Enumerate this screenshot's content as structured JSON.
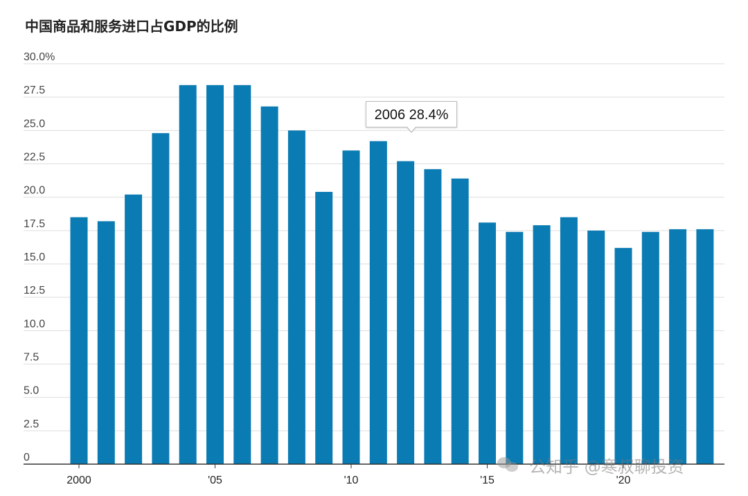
{
  "chart_data": {
    "type": "bar",
    "title": "中国商品和服务进口占GDP的比例",
    "years": [
      2000,
      2001,
      2002,
      2003,
      2004,
      2005,
      2006,
      2007,
      2008,
      2009,
      2010,
      2011,
      2012,
      2013,
      2014,
      2015,
      2016,
      2017,
      2018,
      2019,
      2020,
      2021,
      2022,
      2023
    ],
    "values": [
      18.5,
      18.2,
      20.2,
      24.8,
      28.4,
      28.4,
      28.4,
      26.8,
      25.0,
      20.4,
      23.5,
      24.2,
      22.7,
      22.1,
      21.4,
      18.1,
      17.4,
      17.9,
      18.5,
      17.5,
      16.2,
      17.4,
      17.6,
      17.6
    ],
    "ylim": [
      0,
      30
    ],
    "yticks": [
      "0",
      "2.5",
      "5.0",
      "7.5",
      "10.0",
      "12.5",
      "15.0",
      "17.5",
      "20.0",
      "22.5",
      "25.0",
      "27.5",
      "30.0%"
    ],
    "xticks": [
      {
        "year": 2000,
        "label": "2000"
      },
      {
        "year": 2005,
        "label": "'05"
      },
      {
        "year": 2010,
        "label": "'10"
      },
      {
        "year": 2015,
        "label": "'15"
      },
      {
        "year": 2020,
        "label": "'20"
      }
    ],
    "grid": true,
    "bar_color": "#0a7bb3",
    "tooltip": {
      "text": "2006 28.4%"
    }
  },
  "watermark": {
    "text": "公知乎 @寒叔聊投资",
    "icon": "wechat-icon"
  }
}
